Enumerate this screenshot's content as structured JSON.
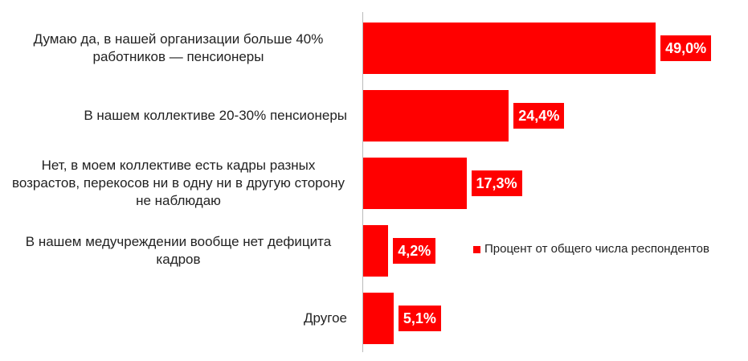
{
  "chart_data": {
    "type": "bar",
    "orientation": "horizontal",
    "categories": [
      "Думаю да, в нашей организации больше 40% работников — пенсионеры",
      "В нашем коллективе 20-30% пенсионеры",
      "Нет, в моем коллективе есть кадры разных возрастов, перекосов ни в одну ни в другую сторону не наблюдаю",
      "В нашем медучреждении вообще нет дефицита кадров",
      "Другое"
    ],
    "series": [
      {
        "name": "Процент от общего числа респондентов",
        "color": "#ff0000",
        "values": [
          49.0,
          24.4,
          17.3,
          4.2,
          5.1
        ],
        "value_labels": [
          "49,0%",
          "24,4%",
          "17,3%",
          "4,2%",
          "5,1%"
        ]
      }
    ],
    "legend": "right"
  }
}
